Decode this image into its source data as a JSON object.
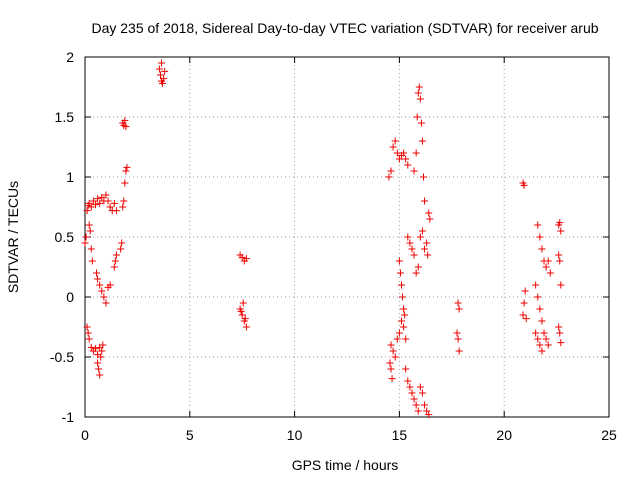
{
  "chart_data": {
    "type": "scatter",
    "title": "Day 235 of 2018, Sidereal Day-to-day VTEC variation (SDTVAR) for receiver arub",
    "xlabel": "GPS time / hours",
    "ylabel": "SDTVAR / TECUs",
    "xlim": [
      0,
      25
    ],
    "ylim": [
      -1,
      2
    ],
    "xticks": [
      0,
      5,
      10,
      15,
      20,
      25
    ],
    "yticks": [
      -1,
      -0.5,
      0,
      0.5,
      1,
      1.5,
      2
    ],
    "xtick_labels": [
      "0",
      "5",
      "10",
      "15",
      "20",
      "25"
    ],
    "ytick_labels": [
      "-1",
      "-0.5",
      "0",
      "0.5",
      "1",
      "1.5",
      "2"
    ],
    "grid": true,
    "marker": "+",
    "series": [
      {
        "name": "SDTVAR",
        "color": "#ee0000",
        "points": [
          [
            0.0,
            0.45
          ],
          [
            0.05,
            0.5
          ],
          [
            0.1,
            0.72
          ],
          [
            0.15,
            0.76
          ],
          [
            0.2,
            0.6
          ],
          [
            0.25,
            0.55
          ],
          [
            0.3,
            0.4
          ],
          [
            0.35,
            0.3
          ],
          [
            0.1,
            -0.25
          ],
          [
            0.15,
            -0.3
          ],
          [
            0.2,
            -0.35
          ],
          [
            0.3,
            -0.42
          ],
          [
            0.4,
            -0.45
          ],
          [
            0.5,
            -0.43
          ],
          [
            0.6,
            -0.48
          ],
          [
            0.7,
            -0.42
          ],
          [
            0.2,
            0.78
          ],
          [
            0.3,
            0.75
          ],
          [
            0.4,
            0.8
          ],
          [
            0.5,
            0.77
          ],
          [
            0.6,
            0.82
          ],
          [
            0.7,
            0.78
          ],
          [
            0.8,
            0.83
          ],
          [
            0.9,
            0.8
          ],
          [
            1.0,
            0.85
          ],
          [
            1.1,
            0.8
          ],
          [
            1.2,
            0.75
          ],
          [
            1.3,
            0.72
          ],
          [
            1.4,
            0.78
          ],
          [
            1.5,
            0.72
          ],
          [
            0.55,
            0.2
          ],
          [
            0.6,
            0.15
          ],
          [
            0.7,
            0.1
          ],
          [
            0.8,
            0.05
          ],
          [
            0.9,
            0.0
          ],
          [
            1.0,
            -0.05
          ],
          [
            1.1,
            0.08
          ],
          [
            1.2,
            0.1
          ],
          [
            0.6,
            -0.55
          ],
          [
            0.65,
            -0.6
          ],
          [
            0.7,
            -0.65
          ],
          [
            0.75,
            -0.5
          ],
          [
            0.8,
            -0.45
          ],
          [
            0.85,
            -0.4
          ],
          [
            1.4,
            0.25
          ],
          [
            1.45,
            0.3
          ],
          [
            1.5,
            0.35
          ],
          [
            1.7,
            0.4
          ],
          [
            1.75,
            0.45
          ],
          [
            1.8,
            0.75
          ],
          [
            1.85,
            0.8
          ],
          [
            1.9,
            0.95
          ],
          [
            1.95,
            1.05
          ],
          [
            2.0,
            1.08
          ],
          [
            1.8,
            1.45
          ],
          [
            1.85,
            1.43
          ],
          [
            1.9,
            1.47
          ],
          [
            1.95,
            1.42
          ],
          [
            3.55,
            1.9
          ],
          [
            3.6,
            1.85
          ],
          [
            3.65,
            1.8
          ],
          [
            3.7,
            1.78
          ],
          [
            3.75,
            1.82
          ],
          [
            3.8,
            1.88
          ],
          [
            3.65,
            1.95
          ],
          [
            7.4,
            0.35
          ],
          [
            7.5,
            0.33
          ],
          [
            7.6,
            0.3
          ],
          [
            7.7,
            0.32
          ],
          [
            7.4,
            -0.1
          ],
          [
            7.45,
            -0.12
          ],
          [
            7.5,
            -0.15
          ],
          [
            7.55,
            -0.05
          ],
          [
            7.6,
            -0.2
          ],
          [
            7.65,
            -0.18
          ],
          [
            7.7,
            -0.25
          ],
          [
            14.5,
            1.0
          ],
          [
            14.6,
            1.05
          ],
          [
            14.7,
            1.25
          ],
          [
            14.8,
            1.3
          ],
          [
            14.9,
            1.2
          ],
          [
            15.0,
            1.15
          ],
          [
            15.1,
            1.18
          ],
          [
            15.2,
            1.2
          ],
          [
            15.3,
            1.15
          ],
          [
            15.4,
            1.1
          ],
          [
            14.6,
            -0.4
          ],
          [
            14.7,
            -0.45
          ],
          [
            14.8,
            -0.5
          ],
          [
            14.9,
            -0.35
          ],
          [
            15.0,
            -0.3
          ],
          [
            15.1,
            -0.2
          ],
          [
            15.2,
            -0.25
          ],
          [
            15.3,
            -0.35
          ],
          [
            14.55,
            -0.55
          ],
          [
            14.6,
            -0.6
          ],
          [
            14.65,
            -0.68
          ],
          [
            15.0,
            0.3
          ],
          [
            15.05,
            0.2
          ],
          [
            15.1,
            0.1
          ],
          [
            15.15,
            0.0
          ],
          [
            15.2,
            -0.1
          ],
          [
            15.25,
            -0.15
          ],
          [
            15.4,
            0.5
          ],
          [
            15.5,
            0.45
          ],
          [
            15.6,
            0.4
          ],
          [
            15.7,
            0.35
          ],
          [
            15.8,
            0.2
          ],
          [
            15.9,
            0.25
          ],
          [
            15.3,
            -0.6
          ],
          [
            15.4,
            -0.7
          ],
          [
            15.5,
            -0.75
          ],
          [
            15.6,
            -0.8
          ],
          [
            15.7,
            -0.85
          ],
          [
            15.8,
            -0.9
          ],
          [
            15.9,
            -0.95
          ],
          [
            16.0,
            -0.75
          ],
          [
            16.1,
            -0.8
          ],
          [
            16.2,
            -0.9
          ],
          [
            16.3,
            -0.95
          ],
          [
            16.4,
            -0.98
          ],
          [
            15.7,
            1.05
          ],
          [
            15.8,
            1.2
          ],
          [
            15.85,
            1.5
          ],
          [
            15.9,
            1.7
          ],
          [
            15.95,
            1.75
          ],
          [
            16.0,
            1.65
          ],
          [
            16.05,
            1.45
          ],
          [
            16.1,
            1.3
          ],
          [
            16.15,
            1.0
          ],
          [
            16.2,
            0.8
          ],
          [
            16.0,
            0.5
          ],
          [
            16.1,
            0.55
          ],
          [
            16.2,
            0.4
          ],
          [
            16.3,
            0.45
          ],
          [
            16.35,
            0.35
          ],
          [
            16.4,
            0.7
          ],
          [
            16.45,
            0.65
          ],
          [
            17.8,
            -0.05
          ],
          [
            17.85,
            -0.1
          ],
          [
            17.75,
            -0.3
          ],
          [
            17.8,
            -0.35
          ],
          [
            17.85,
            -0.45
          ],
          [
            20.9,
            0.95
          ],
          [
            20.95,
            0.93
          ],
          [
            20.9,
            -0.15
          ],
          [
            20.95,
            -0.05
          ],
          [
            21.0,
            0.05
          ],
          [
            21.05,
            -0.18
          ],
          [
            21.5,
            0.1
          ],
          [
            21.6,
            0.0
          ],
          [
            21.7,
            -0.1
          ],
          [
            21.8,
            -0.2
          ],
          [
            21.9,
            -0.3
          ],
          [
            22.0,
            -0.35
          ],
          [
            22.1,
            -0.4
          ],
          [
            21.6,
            0.6
          ],
          [
            21.7,
            0.5
          ],
          [
            21.8,
            0.4
          ],
          [
            21.9,
            0.3
          ],
          [
            22.0,
            0.25
          ],
          [
            22.1,
            0.3
          ],
          [
            22.2,
            0.2
          ],
          [
            21.5,
            -0.3
          ],
          [
            21.6,
            -0.35
          ],
          [
            21.7,
            -0.4
          ],
          [
            21.8,
            -0.45
          ],
          [
            22.6,
            0.6
          ],
          [
            22.65,
            0.62
          ],
          [
            22.7,
            0.55
          ],
          [
            22.6,
            0.35
          ],
          [
            22.65,
            0.3
          ],
          [
            22.7,
            0.1
          ],
          [
            22.6,
            -0.25
          ],
          [
            22.65,
            -0.3
          ],
          [
            22.7,
            -0.38
          ]
        ]
      }
    ]
  }
}
